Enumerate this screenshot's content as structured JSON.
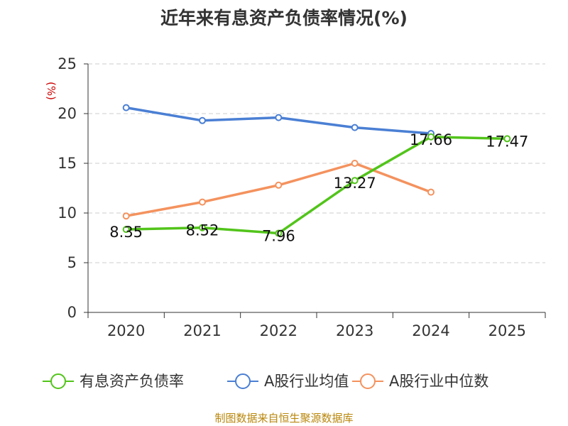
{
  "chart_data": {
    "type": "line",
    "title": "近年来有息资产负债率情况(%)",
    "unit": "(%)",
    "source": "制图数据来自恒生聚源数据库",
    "categories": [
      "2020",
      "2021",
      "2022",
      "2023",
      "2024",
      "2025"
    ],
    "ylim": [
      0,
      25
    ],
    "yticks": [
      0,
      5,
      10,
      15,
      20,
      25
    ],
    "grid": true,
    "legend_position": "bottom",
    "series": [
      {
        "name": "有息资产负债率",
        "color": "#52c41a",
        "values": [
          8.35,
          8.52,
          7.96,
          13.27,
          17.66,
          17.47
        ],
        "labels": [
          "8.35",
          "8.52",
          "7.96",
          "13.27",
          "17.66",
          "17.47"
        ]
      },
      {
        "name": "A股行业均值",
        "color": "#4a7fd4",
        "values": [
          20.6,
          19.3,
          19.6,
          18.6,
          18.0,
          null
        ]
      },
      {
        "name": "A股行业中位数",
        "color": "#f4925e",
        "values": [
          9.7,
          11.1,
          12.8,
          15.0,
          12.1,
          null
        ]
      }
    ]
  }
}
